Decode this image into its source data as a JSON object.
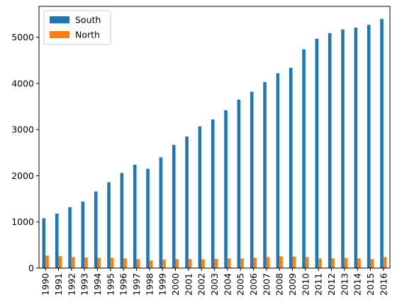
{
  "chart_data": {
    "type": "bar",
    "categories": [
      "1990",
      "1991",
      "1992",
      "1993",
      "1994",
      "1995",
      "1996",
      "1997",
      "1998",
      "1999",
      "2000",
      "2001",
      "2002",
      "2003",
      "2004",
      "2005",
      "2006",
      "2007",
      "2008",
      "2009",
      "2010",
      "2011",
      "2012",
      "2013",
      "2014",
      "2015",
      "2016"
    ],
    "series": [
      {
        "name": "South",
        "color": "#1f77b4",
        "values": [
          1080,
          1180,
          1320,
          1440,
          1660,
          1860,
          2060,
          2240,
          2150,
          2400,
          2670,
          2850,
          3070,
          3220,
          3420,
          3650,
          3820,
          4030,
          4220,
          4340,
          4740,
          4970,
          5090,
          5170,
          5210,
          5270,
          5400
        ]
      },
      {
        "name": "North",
        "color": "#ff7f0e",
        "values": [
          270,
          260,
          240,
          230,
          225,
          225,
          210,
          195,
          165,
          185,
          195,
          195,
          190,
          200,
          210,
          210,
          225,
          240,
          255,
          250,
          240,
          210,
          210,
          220,
          210,
          195,
          240
        ]
      }
    ],
    "title": "",
    "xlabel": "",
    "ylabel": "",
    "ylim": [
      0,
      5670
    ],
    "yticks": [
      0,
      1000,
      2000,
      3000,
      4000,
      5000
    ],
    "legend": {
      "position": "top-left"
    },
    "grid": false
  }
}
